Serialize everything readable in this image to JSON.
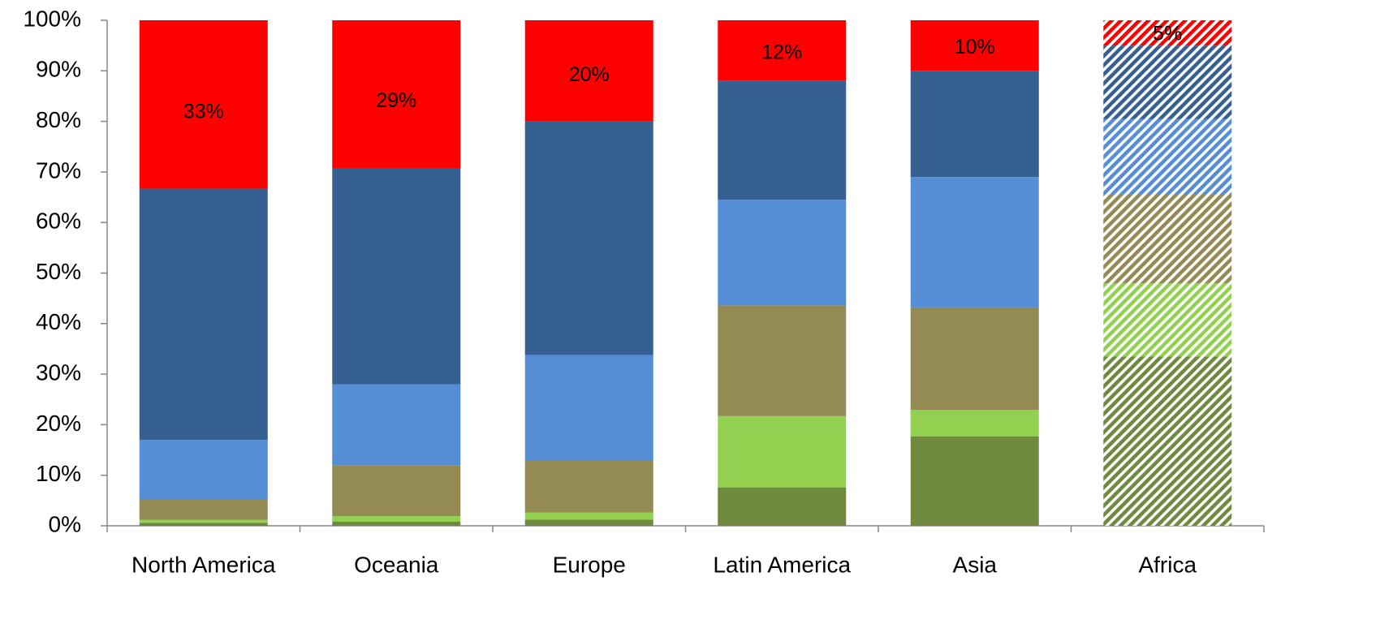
{
  "chart_data": {
    "type": "stacked_bar_percent",
    "categories": [
      "North America",
      "Oceania",
      "Europe",
      "Latin America",
      "Asia",
      "Africa"
    ],
    "hatched": [
      false,
      false,
      false,
      false,
      false,
      true
    ],
    "series": [
      {
        "color": "#6f8a3e",
        "values": [
          0.6,
          0.8,
          1.2,
          7.6,
          17.7,
          33.5
        ]
      },
      {
        "color": "#92d050",
        "values": [
          0.6,
          1.1,
          1.4,
          14.1,
          5.2,
          14.5
        ]
      },
      {
        "color": "#948a54",
        "values": [
          4.1,
          10.1,
          10.4,
          21.9,
          20.3,
          17.5
        ]
      },
      {
        "color": "#558ed5",
        "values": [
          11.7,
          16.0,
          20.8,
          20.9,
          25.8,
          15.0
        ]
      },
      {
        "color": "#376092",
        "values": [
          49.7,
          42.7,
          46.2,
          23.5,
          21.0,
          14.5
        ]
      },
      {
        "color": "#ff0000",
        "values": [
          33.3,
          29.3,
          20.0,
          12.0,
          10.0,
          5.0
        ],
        "value_labels": [
          "33%",
          "29%",
          "20%",
          "12%",
          "10%",
          "5%"
        ]
      }
    ],
    "ylim": [
      0,
      100
    ],
    "yticks": [
      {
        "value": 0,
        "label": "0%"
      },
      {
        "value": 10,
        "label": "10%"
      },
      {
        "value": 20,
        "label": "20%"
      },
      {
        "value": 30,
        "label": "30%"
      },
      {
        "value": 40,
        "label": "40%"
      },
      {
        "value": 50,
        "label": "50%"
      },
      {
        "value": 60,
        "label": "60%"
      },
      {
        "value": 70,
        "label": "70%"
      },
      {
        "value": 80,
        "label": "80%"
      },
      {
        "value": 90,
        "label": "90%"
      },
      {
        "value": 100,
        "label": "100%"
      }
    ],
    "grid": false
  }
}
